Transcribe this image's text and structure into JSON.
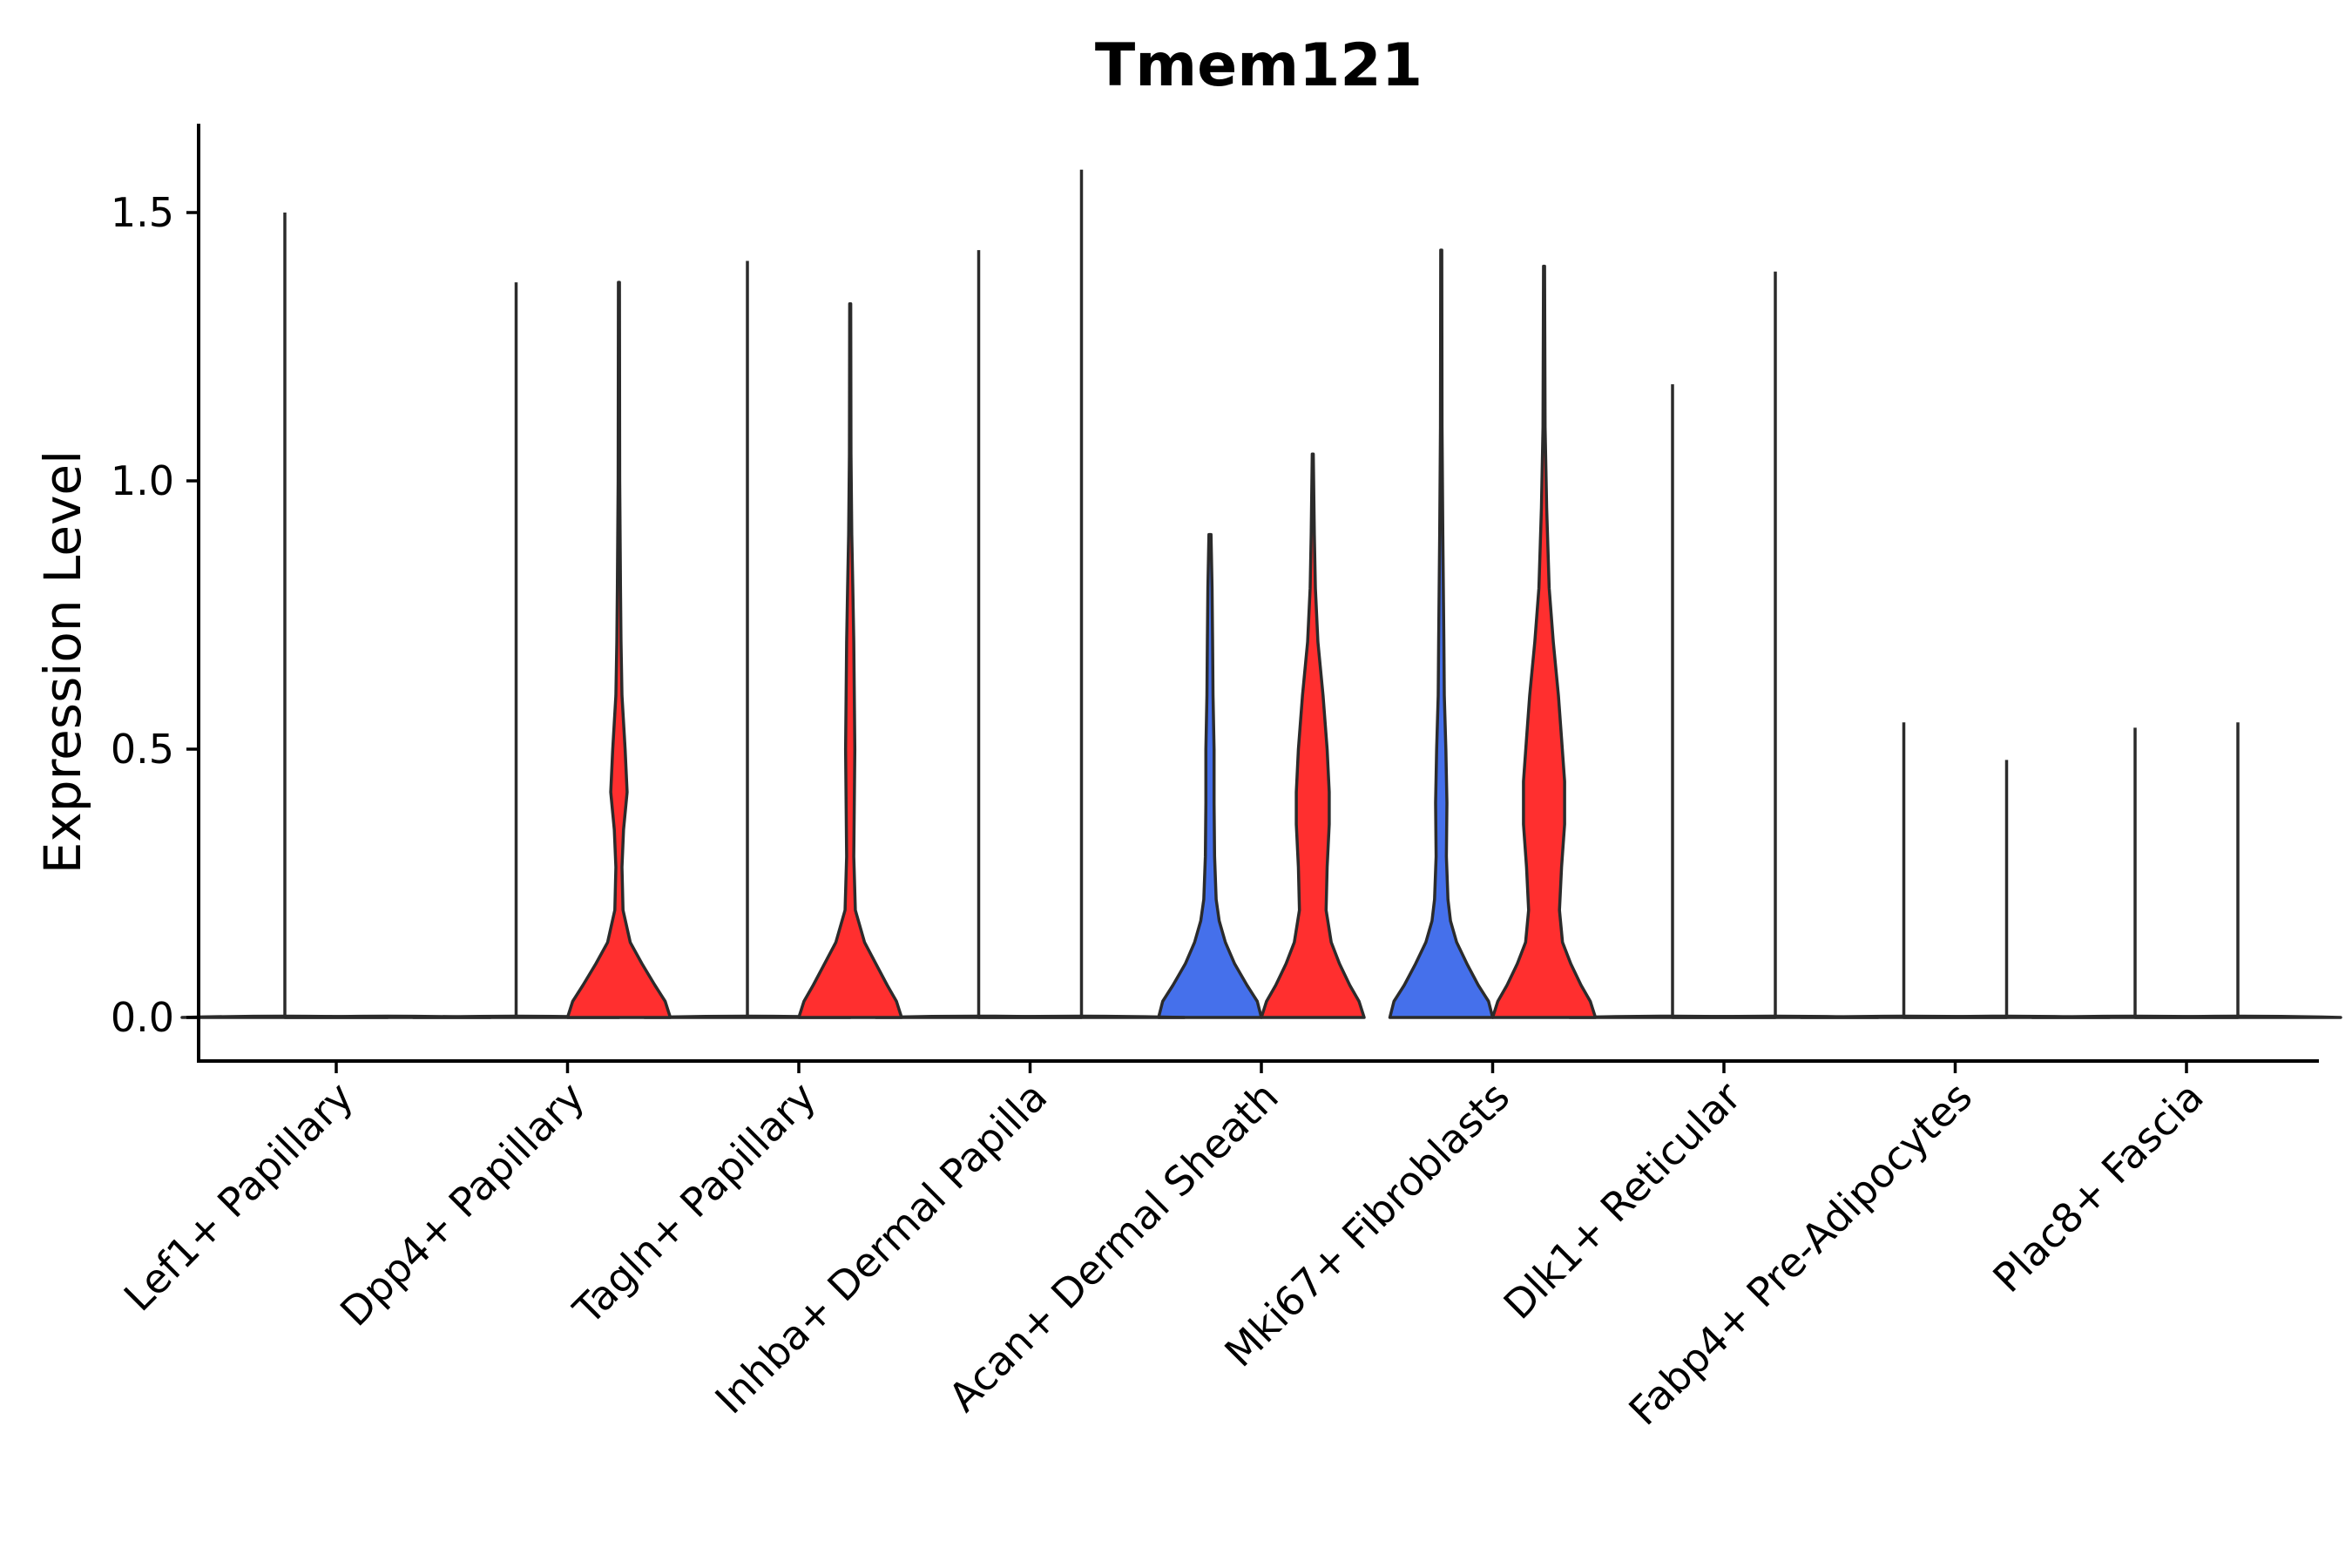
{
  "chart_data": {
    "type": "violin",
    "title": "Tmem121",
    "xlabel": "",
    "ylabel": "Expression Level",
    "ylim": [
      -0.08,
      1.66
    ],
    "yticks": [
      0.0,
      0.5,
      1.0,
      1.5
    ],
    "ytick_labels": [
      "0.0",
      "0.5",
      "1.0",
      "1.5"
    ],
    "grid": false,
    "legend": "none",
    "categories": [
      "Lef1+ Papillary",
      "Dpp4+ Papillary",
      "Tagln+ Papillary",
      "Inhba+ Dermal Papilla",
      "Acan+ Dermal Sheath",
      "Mki67+ Fibroblasts",
      "Dlk1+ Reticular",
      "Fabp4+ Pre-Adipocytes",
      "Plac8+ Fascia"
    ],
    "series": [
      {
        "name": "group 1",
        "color": "#4570eb",
        "violins": [
          {
            "category": "Lef1+ Papillary",
            "max": 1.5,
            "filled": false,
            "profile": []
          },
          {
            "category": "Dpp4+ Papillary",
            "max": 1.37,
            "filled": false,
            "profile": []
          },
          {
            "category": "Tagln+ Papillary",
            "max": 1.41,
            "filled": false,
            "profile": []
          },
          {
            "category": "Inhba+ Dermal Papilla",
            "max": 1.43,
            "filled": false,
            "profile": []
          },
          {
            "category": "Acan+ Dermal Sheath",
            "max": 0.9,
            "filled": true,
            "profile": [
              [
                0,
                1.0
              ],
              [
                0.03,
                0.92
              ],
              [
                0.06,
                0.72
              ],
              [
                0.1,
                0.48
              ],
              [
                0.14,
                0.3
              ],
              [
                0.18,
                0.18
              ],
              [
                0.22,
                0.12
              ],
              [
                0.3,
                0.09
              ],
              [
                0.4,
                0.08
              ],
              [
                0.5,
                0.08
              ],
              [
                0.6,
                0.06
              ],
              [
                0.7,
                0.05
              ],
              [
                0.8,
                0.04
              ],
              [
                0.9,
                0.02
              ]
            ]
          },
          {
            "category": "Mki67+ Fibroblasts",
            "max": 1.43,
            "filled": true,
            "profile": [
              [
                0,
                1.0
              ],
              [
                0.03,
                0.92
              ],
              [
                0.06,
                0.72
              ],
              [
                0.1,
                0.5
              ],
              [
                0.14,
                0.3
              ],
              [
                0.18,
                0.18
              ],
              [
                0.22,
                0.13
              ],
              [
                0.3,
                0.1
              ],
              [
                0.4,
                0.11
              ],
              [
                0.5,
                0.09
              ],
              [
                0.6,
                0.06
              ],
              [
                0.7,
                0.05
              ],
              [
                0.9,
                0.03
              ],
              [
                1.1,
                0.015
              ],
              [
                1.43,
                0.01
              ]
            ]
          },
          {
            "category": "Dlk1+ Reticular",
            "max": 1.18,
            "filled": false,
            "profile": []
          },
          {
            "category": "Fabp4+ Pre-Adipocytes",
            "max": 0.55,
            "filled": false,
            "profile": []
          },
          {
            "category": "Plac8+ Fascia",
            "max": 0.54,
            "filled": false,
            "profile": []
          }
        ]
      },
      {
        "name": "group 2",
        "color": "#ff2f2f",
        "violins": [
          {
            "category": "Lef1+ Papillary",
            "max": 0.0,
            "filled": false,
            "profile": []
          },
          {
            "category": "Dpp4+ Papillary",
            "max": 1.37,
            "filled": true,
            "profile": [
              [
                0,
                1.0
              ],
              [
                0.03,
                0.9
              ],
              [
                0.06,
                0.7
              ],
              [
                0.1,
                0.45
              ],
              [
                0.14,
                0.22
              ],
              [
                0.2,
                0.08
              ],
              [
                0.28,
                0.06
              ],
              [
                0.35,
                0.09
              ],
              [
                0.42,
                0.16
              ],
              [
                0.5,
                0.12
              ],
              [
                0.6,
                0.06
              ],
              [
                0.7,
                0.04
              ],
              [
                0.8,
                0.03
              ],
              [
                1.0,
                0.015
              ],
              [
                1.37,
                0.01
              ]
            ]
          },
          {
            "category": "Tagln+ Papillary",
            "max": 1.33,
            "filled": true,
            "profile": [
              [
                0,
                1.0
              ],
              [
                0.03,
                0.9
              ],
              [
                0.06,
                0.72
              ],
              [
                0.1,
                0.5
              ],
              [
                0.14,
                0.28
              ],
              [
                0.2,
                0.1
              ],
              [
                0.3,
                0.07
              ],
              [
                0.4,
                0.08
              ],
              [
                0.5,
                0.09
              ],
              [
                0.6,
                0.08
              ],
              [
                0.7,
                0.07
              ],
              [
                0.8,
                0.05
              ],
              [
                0.9,
                0.03
              ],
              [
                1.05,
                0.015
              ],
              [
                1.33,
                0.01
              ]
            ]
          },
          {
            "category": "Inhba+ Dermal Papilla",
            "max": 1.58,
            "filled": false,
            "profile": []
          },
          {
            "category": "Acan+ Dermal Sheath",
            "max": 1.05,
            "filled": true,
            "profile": [
              [
                0,
                1.0
              ],
              [
                0.03,
                0.9
              ],
              [
                0.06,
                0.72
              ],
              [
                0.1,
                0.52
              ],
              [
                0.14,
                0.36
              ],
              [
                0.2,
                0.26
              ],
              [
                0.28,
                0.28
              ],
              [
                0.36,
                0.32
              ],
              [
                0.42,
                0.32
              ],
              [
                0.5,
                0.28
              ],
              [
                0.6,
                0.2
              ],
              [
                0.7,
                0.1
              ],
              [
                0.8,
                0.05
              ],
              [
                0.9,
                0.03
              ],
              [
                1.05,
                0.01
              ]
            ]
          },
          {
            "category": "Mki67+ Fibroblasts",
            "max": 1.4,
            "filled": true,
            "profile": [
              [
                0,
                1.0
              ],
              [
                0.03,
                0.9
              ],
              [
                0.06,
                0.72
              ],
              [
                0.1,
                0.52
              ],
              [
                0.14,
                0.36
              ],
              [
                0.2,
                0.3
              ],
              [
                0.28,
                0.34
              ],
              [
                0.36,
                0.4
              ],
              [
                0.44,
                0.4
              ],
              [
                0.52,
                0.34
              ],
              [
                0.6,
                0.28
              ],
              [
                0.7,
                0.18
              ],
              [
                0.8,
                0.1
              ],
              [
                0.95,
                0.05
              ],
              [
                1.1,
                0.02
              ],
              [
                1.4,
                0.01
              ]
            ]
          },
          {
            "category": "Dlk1+ Reticular",
            "max": 1.39,
            "filled": false,
            "profile": []
          },
          {
            "category": "Fabp4+ Pre-Adipocytes",
            "max": 0.48,
            "filled": false,
            "profile": []
          },
          {
            "category": "Plac8+ Fascia",
            "max": 0.55,
            "filled": false,
            "profile": []
          }
        ]
      }
    ]
  }
}
